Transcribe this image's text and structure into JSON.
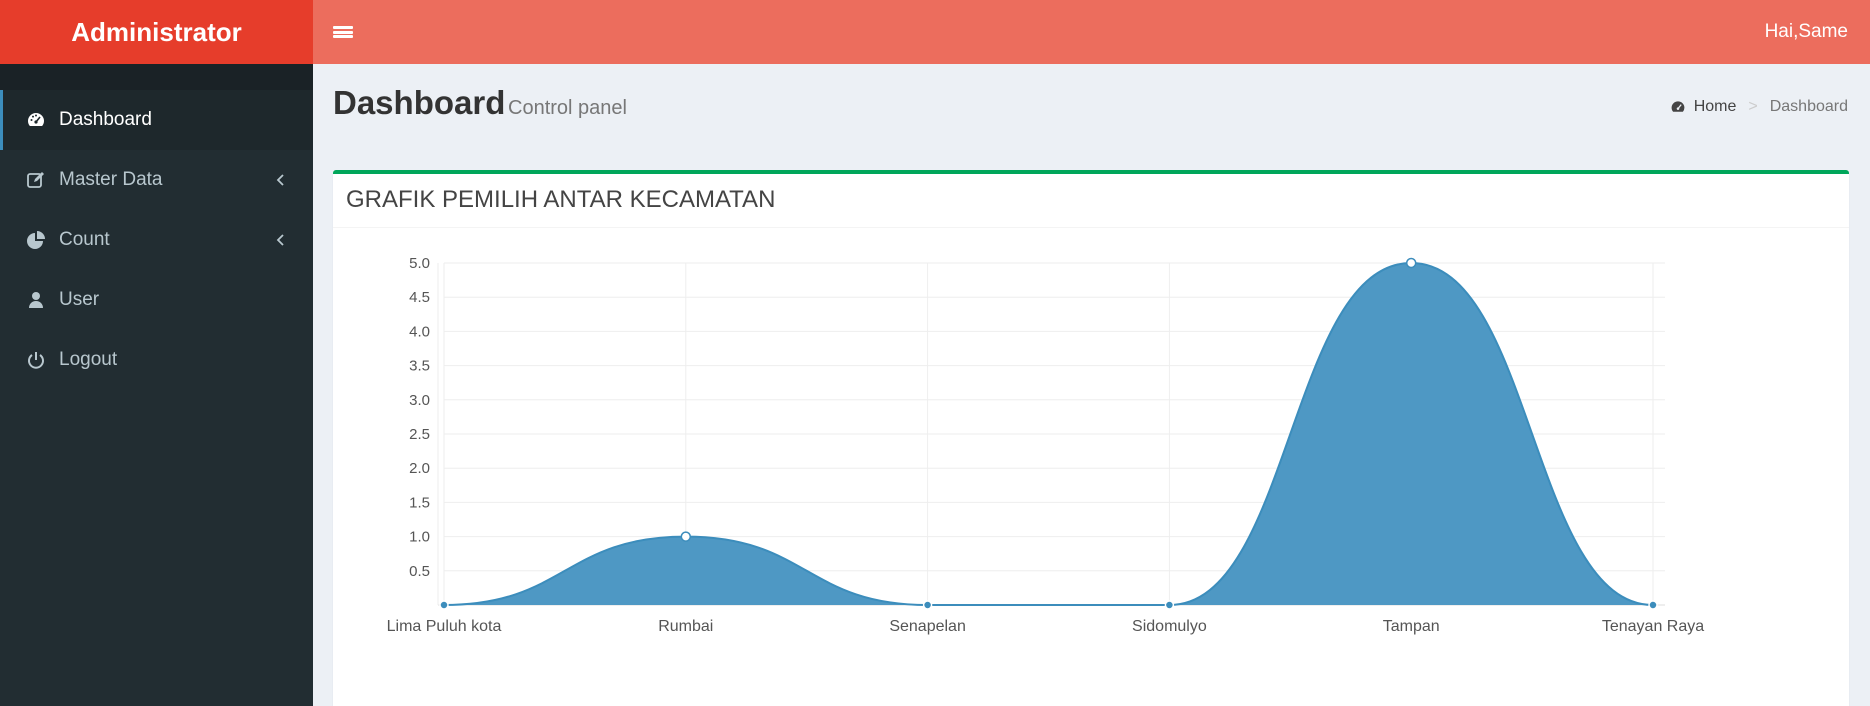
{
  "header": {
    "brand": "Administrator",
    "user_greeting": "Hai,Same"
  },
  "sidebar": {
    "items": [
      {
        "label": "Dashboard",
        "icon": "dashboard-icon",
        "active": true,
        "has_children": false
      },
      {
        "label": "Master Data",
        "icon": "edit-icon",
        "active": false,
        "has_children": true
      },
      {
        "label": "Count",
        "icon": "pie-chart-icon",
        "active": false,
        "has_children": true
      },
      {
        "label": "User",
        "icon": "user-icon",
        "active": false,
        "has_children": false
      },
      {
        "label": "Logout",
        "icon": "power-icon",
        "active": false,
        "has_children": false
      }
    ]
  },
  "content_header": {
    "title": "Dashboard",
    "subtitle": "Control panel",
    "breadcrumb": {
      "home": "Home",
      "current": "Dashboard",
      "separator": ">"
    }
  },
  "box": {
    "title": "GRAFIK PEMILIH ANTAR KECAMATAN"
  },
  "colors": {
    "brand": "#e63d2b",
    "topbar": "#ec6d5d",
    "sidebar": "#222d32",
    "box_border": "#00a65a",
    "area_fill": "#4e98c4",
    "point": "#3c8dbc"
  },
  "chart_data": {
    "type": "area",
    "categories": [
      "Lima Puluh kota",
      "Rumbai",
      "Senapelan",
      "Sidomulyo",
      "Tampan",
      "Tenayan Raya"
    ],
    "values": [
      0,
      1,
      0,
      0,
      5,
      0
    ],
    "ylim": [
      0,
      5
    ],
    "yticks": [
      "0.5",
      "1.0",
      "1.5",
      "2.0",
      "2.5",
      "3.0",
      "3.5",
      "4.0",
      "4.5",
      "5.0"
    ],
    "title": "",
    "xlabel": "",
    "ylabel": "",
    "grid": true,
    "smooth": true
  }
}
